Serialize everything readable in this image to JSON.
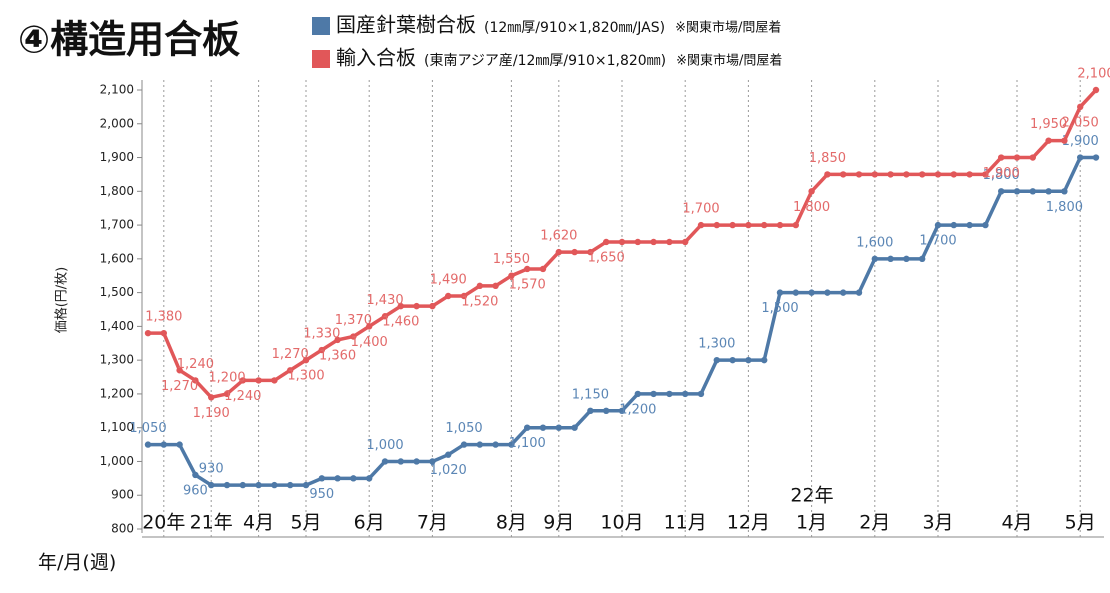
{
  "chart_data": {
    "type": "line",
    "title": "④構造用合板",
    "y_axis_label": "価格(円/枚)",
    "x_axis_label": "年/月(週)",
    "annotation": "22年",
    "grid": true,
    "ylim": [
      800,
      2100
    ],
    "yticks": [
      800,
      900,
      {
        "value": 1000,
        "label": "1,000"
      },
      {
        "value": 1100,
        "label": "1,100"
      },
      {
        "value": 1200,
        "label": "1,200"
      },
      {
        "value": 1300,
        "label": "1,300"
      },
      {
        "value": 1400,
        "label": "1,400"
      },
      {
        "value": 1500,
        "label": "1,500"
      },
      {
        "value": 1600,
        "label": "1,600"
      },
      {
        "value": 1700,
        "label": "1,700"
      },
      {
        "value": 1800,
        "label": "1,800"
      },
      {
        "value": 1900,
        "label": "1,900"
      },
      {
        "value": 2000,
        "label": "2,000"
      },
      {
        "value": 2100,
        "label": "2,100"
      }
    ],
    "categories": [
      null,
      "20年",
      null,
      null,
      "21年",
      null,
      null,
      "4月",
      null,
      null,
      "5月",
      null,
      null,
      null,
      "6月",
      null,
      null,
      null,
      "7月",
      null,
      null,
      null,
      null,
      "8月",
      null,
      null,
      "9月",
      null,
      null,
      null,
      "10月",
      null,
      null,
      null,
      "11月",
      null,
      null,
      null,
      "12月",
      null,
      null,
      null,
      "1月",
      null,
      null,
      null,
      "2月",
      null,
      null,
      null,
      "3月",
      null,
      null,
      null,
      null,
      "4月",
      null,
      null,
      null,
      "5月",
      null
    ],
    "series": [
      {
        "name": "国産針葉樹合板",
        "spec": "(12㎜厚/910×1,820㎜/JAS)",
        "note": "※関東市場/問屋着",
        "color": "#4e79a7",
        "label_color": "#5b86b5",
        "values": [
          1050,
          1050,
          1050,
          960,
          930,
          930,
          930,
          930,
          930,
          930,
          930,
          950,
          950,
          950,
          950,
          1000,
          1000,
          1000,
          1000,
          1020,
          1050,
          1050,
          1050,
          1050,
          1100,
          1100,
          1100,
          1100,
          1150,
          1150,
          1150,
          1200,
          1200,
          1200,
          1200,
          1200,
          1300,
          1300,
          1300,
          1300,
          1500,
          1500,
          1500,
          1500,
          1500,
          1500,
          1600,
          1600,
          1600,
          1600,
          1700,
          1700,
          1700,
          1700,
          1800,
          1800,
          1800,
          1800,
          1800,
          1900,
          1900
        ],
        "value_labels": [
          "1,050",
          null,
          null,
          "960",
          "930",
          null,
          null,
          null,
          null,
          null,
          null,
          "950",
          null,
          null,
          null,
          "1,000",
          null,
          null,
          null,
          "1,020",
          "1,050",
          null,
          null,
          null,
          "1,100",
          null,
          null,
          null,
          "1,150",
          null,
          null,
          "1,200",
          null,
          null,
          null,
          null,
          "1,300",
          null,
          null,
          null,
          "1,500",
          null,
          null,
          null,
          null,
          null,
          "1,600",
          null,
          null,
          null,
          "1,700",
          null,
          null,
          null,
          "1,800",
          null,
          null,
          null,
          "1,800",
          "1,900",
          null
        ]
      },
      {
        "name": "輸入合板",
        "spec": "(東南アジア産/12㎜厚/910×1,820㎜)",
        "note": "※関東市場/問屋着",
        "color": "#e15759",
        "label_color": "#e36a6a",
        "values": [
          1380,
          1380,
          1270,
          1240,
          1190,
          1200,
          1240,
          1240,
          1240,
          1270,
          1300,
          1330,
          1360,
          1370,
          1400,
          1430,
          1460,
          1460,
          1460,
          1490,
          1490,
          1520,
          1520,
          1550,
          1570,
          1570,
          1620,
          1620,
          1620,
          1650,
          1650,
          1650,
          1650,
          1650,
          1650,
          1700,
          1700,
          1700,
          1700,
          1700,
          1700,
          1700,
          1800,
          1850,
          1850,
          1850,
          1850,
          1850,
          1850,
          1850,
          1850,
          1850,
          1850,
          1850,
          1900,
          1900,
          1900,
          1950,
          1950,
          2050,
          2100
        ],
        "value_labels": [
          null,
          "1,380",
          "1,270",
          "1,240",
          "1,190",
          "1,200",
          "1,240",
          null,
          null,
          "1,270",
          "1,300",
          "1,330",
          "1,360",
          "1,370",
          "1,400",
          "1,430",
          "1,460",
          null,
          null,
          "1,490",
          null,
          "1,520",
          null,
          "1,550",
          "1,570",
          null,
          "1,620",
          null,
          null,
          "1,650",
          null,
          null,
          null,
          null,
          null,
          "1,700",
          null,
          null,
          null,
          null,
          null,
          null,
          "1,800",
          "1,850",
          null,
          null,
          null,
          null,
          null,
          null,
          null,
          null,
          null,
          null,
          "1,900",
          null,
          null,
          "1,950",
          null,
          "2,050",
          "2,100"
        ]
      }
    ]
  }
}
